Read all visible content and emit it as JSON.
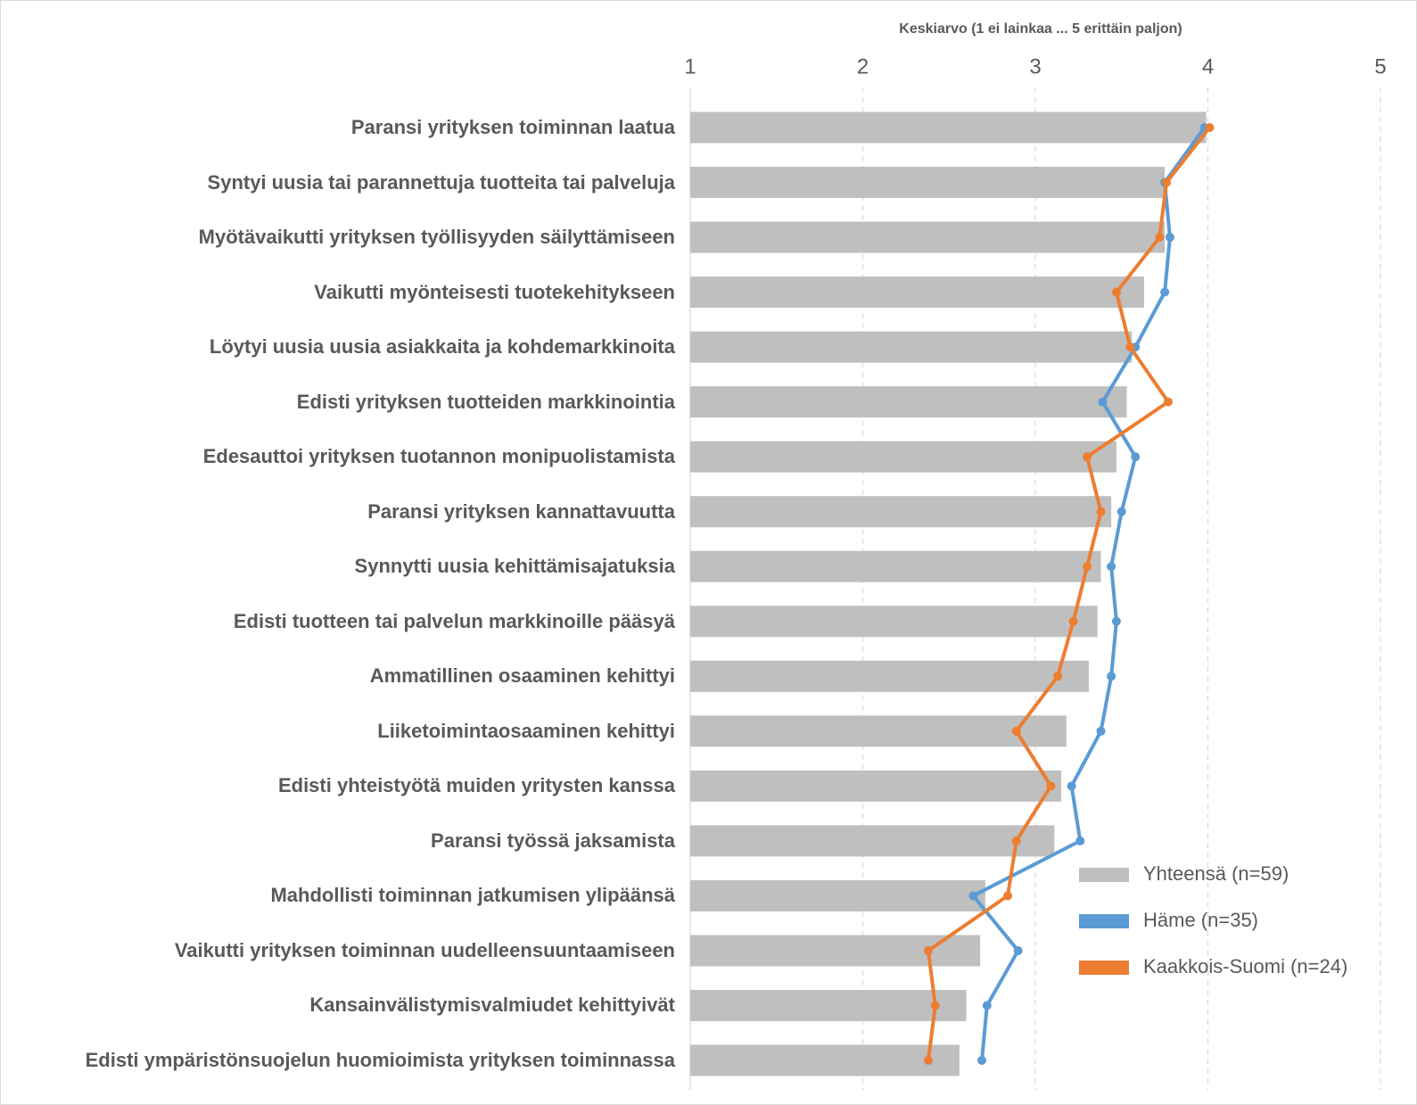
{
  "chart_data": {
    "type": "bar",
    "orientation": "horizontal",
    "x_axis_title": "Keskiarvo (1 ei lainkaa ... 5 erittäin paljon)",
    "categories": [
      "Paransi yrityksen toiminnan laatua",
      "Syntyi uusia tai parannettuja tuotteita tai palveluja",
      "Myötävaikutti yrityksen työllisyyden säilyttämiseen",
      "Vaikutti myönteisesti tuotekehitykseen",
      "Löytyi uusia uusia asiakkaita ja kohdemarkkinoita",
      "Edisti yrityksen tuotteiden markkinointia",
      "Edesauttoi yrityksen tuotannon monipuolistamista",
      "Paransi yrityksen kannattavuutta",
      "Synnytti uusia kehittämisajatuksia",
      "Edisti tuotteen tai palvelun markkinoille pääsyä",
      "Ammatillinen osaaminen kehittyi",
      "Liiketoimintaosaaminen kehittyi",
      "Edisti yhteistyötä muiden yritysten kanssa",
      "Paransi työssä jaksamista",
      "Mahdollisti toiminnan jatkumisen ylipäänsä",
      "Vaikutti yrityksen toiminnan uudelleensuuntaamiseen",
      "Kansainvälistymisvalmiudet kehittyivät",
      "Edisti ympäristönsuojelun huomioimista yrityksen toiminnassa"
    ],
    "series": [
      {
        "name": "Yhteensä (n=59)",
        "type": "bar",
        "color": "#bfbfbf",
        "values": [
          3.99,
          3.75,
          3.75,
          3.63,
          3.56,
          3.53,
          3.47,
          3.44,
          3.38,
          3.36,
          3.31,
          3.18,
          3.15,
          3.11,
          2.71,
          2.68,
          2.6,
          2.56
        ]
      },
      {
        "name": "Häme (n=35)",
        "type": "line",
        "color": "#5b9bd5",
        "values": [
          3.98,
          3.75,
          3.78,
          3.75,
          3.58,
          3.39,
          3.58,
          3.5,
          3.44,
          3.47,
          3.44,
          3.38,
          3.21,
          3.26,
          2.64,
          2.9,
          2.72,
          2.69
        ]
      },
      {
        "name": "Kaakkois-Suomi (n=24)",
        "type": "line",
        "color": "#ed7d31",
        "values": [
          4.01,
          3.76,
          3.72,
          3.47,
          3.55,
          3.77,
          3.3,
          3.38,
          3.3,
          3.22,
          3.13,
          2.89,
          3.09,
          2.89,
          2.84,
          2.38,
          2.42,
          2.38
        ]
      }
    ],
    "xlim": [
      1,
      5
    ],
    "xticks": [
      1,
      2,
      3,
      4,
      5
    ],
    "grid": true,
    "legend": "lower right"
  }
}
